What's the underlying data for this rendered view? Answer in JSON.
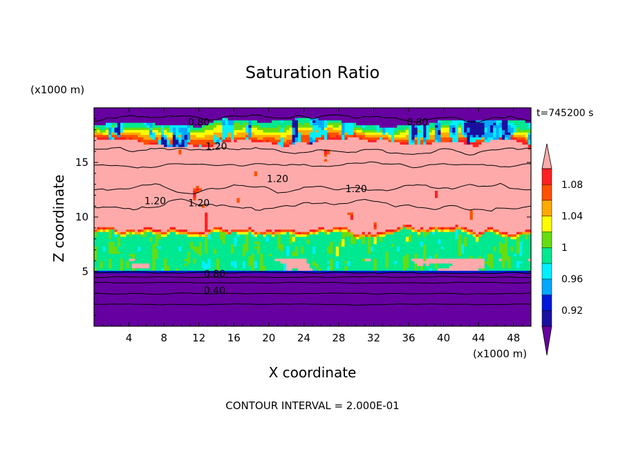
{
  "chart_data": {
    "type": "heatmap",
    "title": "Saturation Ratio",
    "xlabel": "X coordinate",
    "ylabel": "Z coordinate",
    "x_unit": "(x1000 m)",
    "y_unit": "(x1000 m)",
    "xlim": [
      0,
      50
    ],
    "ylim": [
      0,
      20
    ],
    "x_ticks": [
      4,
      8,
      12,
      16,
      20,
      24,
      28,
      32,
      36,
      40,
      44,
      48
    ],
    "y_ticks": [
      5,
      10,
      15
    ],
    "time_label": "t=745200 s",
    "footer": "CONTOUR INTERVAL = 2.000E-01",
    "colorbar": {
      "levels": [
        0.9,
        0.92,
        0.94,
        0.96,
        0.98,
        1.0,
        1.02,
        1.04,
        1.06,
        1.08,
        1.1
      ],
      "tick_labels": [
        "0.92",
        "0.96",
        "1",
        "1.04",
        "1.08"
      ],
      "tick_values": [
        0.92,
        0.96,
        1.0,
        1.04,
        1.08
      ],
      "colors": [
        "#6600a0",
        "#1a10a0",
        "#0018d8",
        "#00a8ff",
        "#00f0ff",
        "#00e890",
        "#66dd11",
        "#ffff00",
        "#ffaa00",
        "#ff5000",
        "#ff2020",
        "#ffaaaa"
      ],
      "extend": "both"
    },
    "contour_labels": [
      {
        "text": "0.80",
        "x": 12,
        "y": 18.7
      },
      {
        "text": "0.80",
        "x": 37,
        "y": 18.7
      },
      {
        "text": "1.20",
        "x": 14,
        "y": 16.5
      },
      {
        "text": "1.20",
        "x": 21,
        "y": 13.5
      },
      {
        "text": "1.20",
        "x": 30,
        "y": 12.6
      },
      {
        "text": "1.20",
        "x": 7,
        "y": 11.5
      },
      {
        "text": "1.20",
        "x": 12,
        "y": 11.3
      },
      {
        "text": "0.80",
        "x": 13.8,
        "y": 4.8
      },
      {
        "text": "0.40",
        "x": 13.8,
        "y": 3.3
      }
    ]
  }
}
